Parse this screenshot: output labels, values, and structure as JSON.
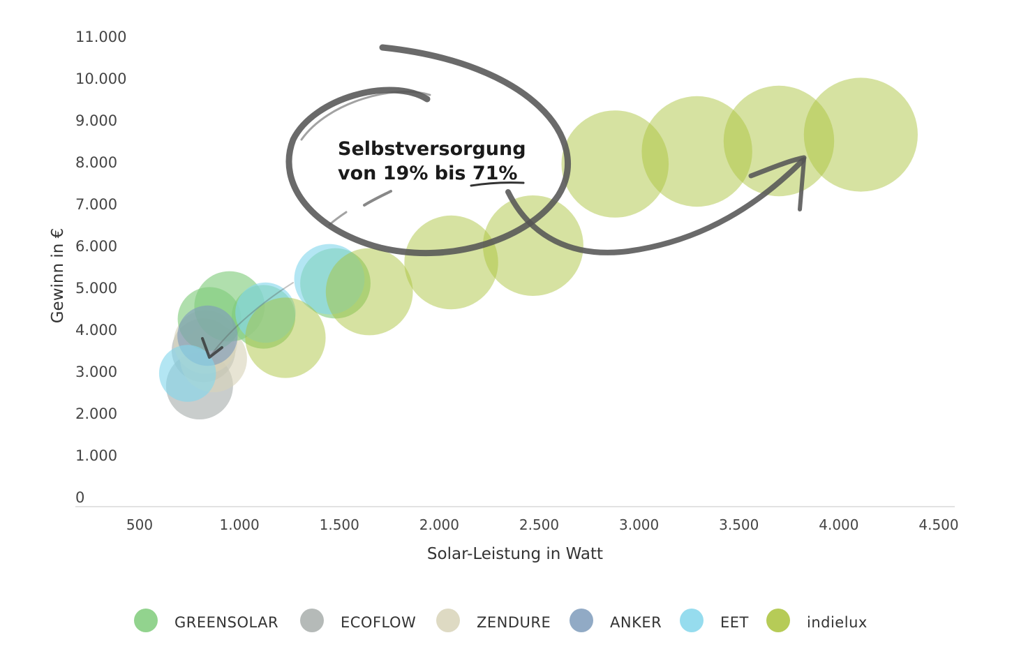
{
  "chart_data": {
    "type": "scatter",
    "xlabel": "Solar-Leistung in Watt",
    "ylabel": "Gewinn in €",
    "xlim": [
      300,
      4500
    ],
    "ylim": [
      0,
      11000
    ],
    "x_ticks": [
      "500",
      "1.000",
      "1.500",
      "2.000",
      "2.500",
      "3.000",
      "3.500",
      "4.000",
      "4.500"
    ],
    "y_ticks": [
      "0",
      "1.000",
      "2.000",
      "3.000",
      "4.000",
      "5.000",
      "6.000",
      "7.000",
      "8.000",
      "9.000",
      "10.000",
      "11.000"
    ],
    "legend_position": "bottom",
    "annotation": {
      "line1": "Selbstversorgung",
      "line2_prefix": "von 19% bis ",
      "line2_highlight": "71%"
    },
    "series": [
      {
        "name": "GREENSOLAR",
        "color": "#7fcb7a",
        "points": [
          {
            "x": 950,
            "y": 4550,
            "size": 1.05
          },
          {
            "x": 850,
            "y": 4250,
            "size": 0.95
          },
          {
            "x": 1120,
            "y": 4300,
            "size": 0.95
          },
          {
            "x": 1480,
            "y": 5100,
            "size": 1.05
          }
        ]
      },
      {
        "name": "ECOFLOW",
        "color": "#a8aeac",
        "points": [
          {
            "x": 800,
            "y": 2650,
            "size": 1.0
          },
          {
            "x": 820,
            "y": 3500,
            "size": 0.95
          }
        ]
      },
      {
        "name": "ZENDURE",
        "color": "#d8d4b9",
        "points": [
          {
            "x": 870,
            "y": 3300,
            "size": 1.0
          },
          {
            "x": 830,
            "y": 3700,
            "size": 0.95
          }
        ]
      },
      {
        "name": "ANKER",
        "color": "#7e9bbb",
        "points": [
          {
            "x": 840,
            "y": 3850,
            "size": 0.9
          }
        ]
      },
      {
        "name": "EET",
        "color": "#84d6eb",
        "points": [
          {
            "x": 740,
            "y": 2950,
            "size": 0.85
          },
          {
            "x": 1130,
            "y": 4400,
            "size": 0.9
          },
          {
            "x": 1450,
            "y": 5200,
            "size": 1.05
          }
        ]
      },
      {
        "name": "indielux",
        "color": "#a9c23a",
        "points": [
          {
            "x": 1230,
            "y": 3800,
            "size": 1.2
          },
          {
            "x": 1650,
            "y": 4900,
            "size": 1.3
          },
          {
            "x": 2060,
            "y": 5600,
            "size": 1.4
          },
          {
            "x": 2470,
            "y": 6000,
            "size": 1.5
          },
          {
            "x": 2880,
            "y": 7950,
            "size": 1.6
          },
          {
            "x": 3290,
            "y": 8250,
            "size": 1.65
          },
          {
            "x": 3700,
            "y": 8500,
            "size": 1.65
          },
          {
            "x": 4110,
            "y": 8650,
            "size": 1.7
          }
        ]
      }
    ]
  }
}
